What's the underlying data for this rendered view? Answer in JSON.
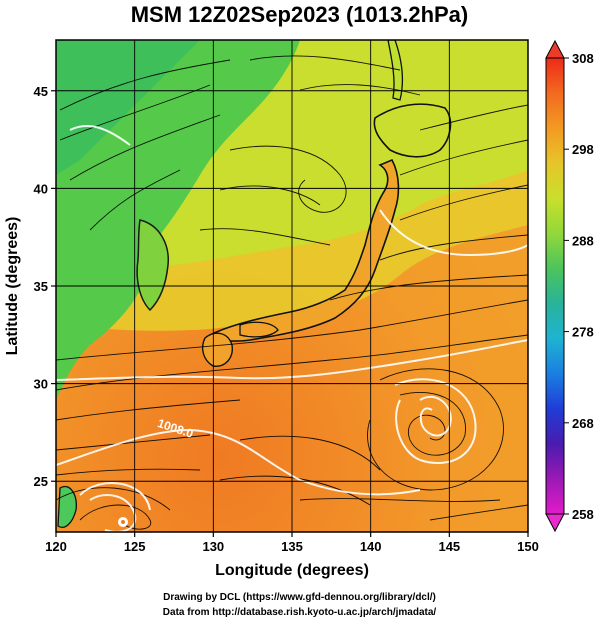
{
  "title": "MSM 12Z02Sep2023 (1013.2hPa)",
  "map": {
    "xlabel": "Longitude (degrees)",
    "ylabel": "Latitude (degrees)",
    "lon_range": [
      120,
      150
    ],
    "lat_range": [
      22.4,
      47.6
    ],
    "lon_ticks": [
      120,
      125,
      130,
      135,
      140,
      145,
      150
    ],
    "lat_ticks": [
      25,
      30,
      35,
      40,
      45
    ],
    "lon_tick_labels": [
      "120",
      "125",
      "130",
      "135",
      "140",
      "145",
      "150"
    ],
    "lat_tick_labels": [
      "25",
      "30",
      "35",
      "40",
      "45"
    ],
    "grid": true,
    "field": "surface temperature (shaded) with streamlines and isobars",
    "isobar_labels": [
      {
        "text": "1008.0",
        "lon": 126.4,
        "lat": 27.8
      }
    ]
  },
  "colorbar": {
    "min": 258,
    "max": 308,
    "tick_labels": [
      "308",
      "298",
      "288",
      "278",
      "268",
      "258"
    ],
    "ticks": [
      308,
      298,
      288,
      278,
      268,
      258
    ],
    "colors": [
      "#ee2a1a",
      "#f26a1f",
      "#f39a22",
      "#e6c52a",
      "#c9df2c",
      "#92d83a",
      "#4cc45b",
      "#28b39a",
      "#1fb3d2",
      "#1a7fe0",
      "#1f3dd6",
      "#4a1bb0",
      "#9a1ab5",
      "#e21bc9"
    ]
  },
  "credits": {
    "line1": "Drawing by DCL (https://www.gfd-dennou.org/library/dcl/)",
    "line2": "Data from http://database.rish.kyoto-u.ac.jp/arch/jmadata/"
  }
}
